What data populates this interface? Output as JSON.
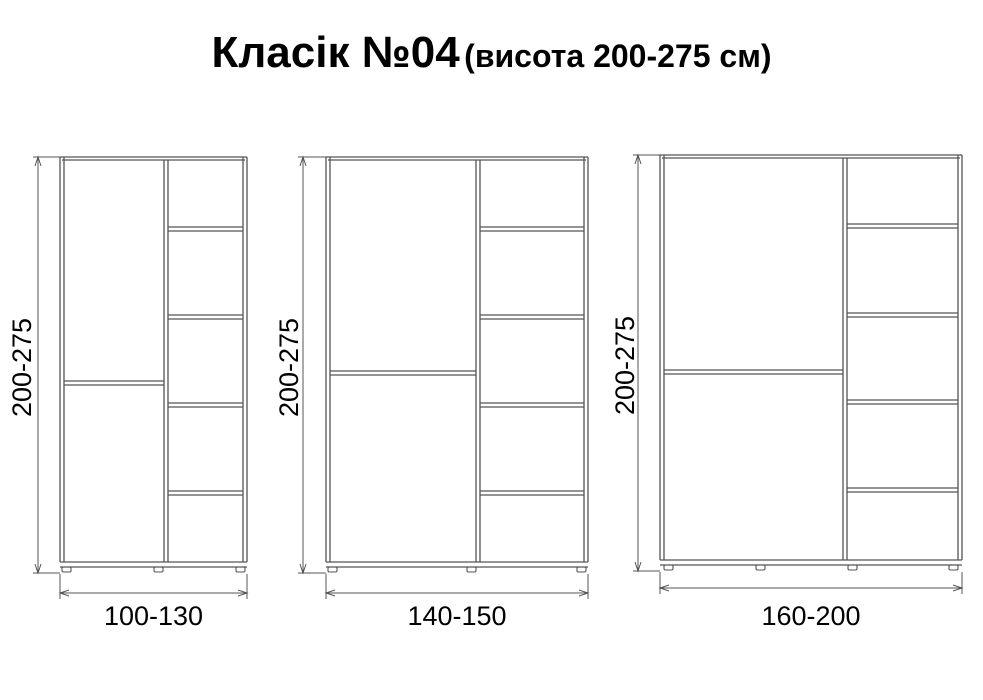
{
  "title": {
    "main": "Класік №04",
    "sub": "(висота 200-275 см)"
  },
  "wardrobes": [
    {
      "height_label": "200-275",
      "width_label": "100-130",
      "shelves_right": 5,
      "doors_left": 2
    },
    {
      "height_label": "200-275",
      "width_label": "140-150",
      "shelves_right": 5,
      "doors_left": 2
    },
    {
      "height_label": "200-275",
      "width_label": "160-200",
      "shelves_right": 5,
      "doors_left": 2
    }
  ],
  "colors": {
    "line": "#555555",
    "text": "#000000",
    "background": "#ffffff"
  }
}
